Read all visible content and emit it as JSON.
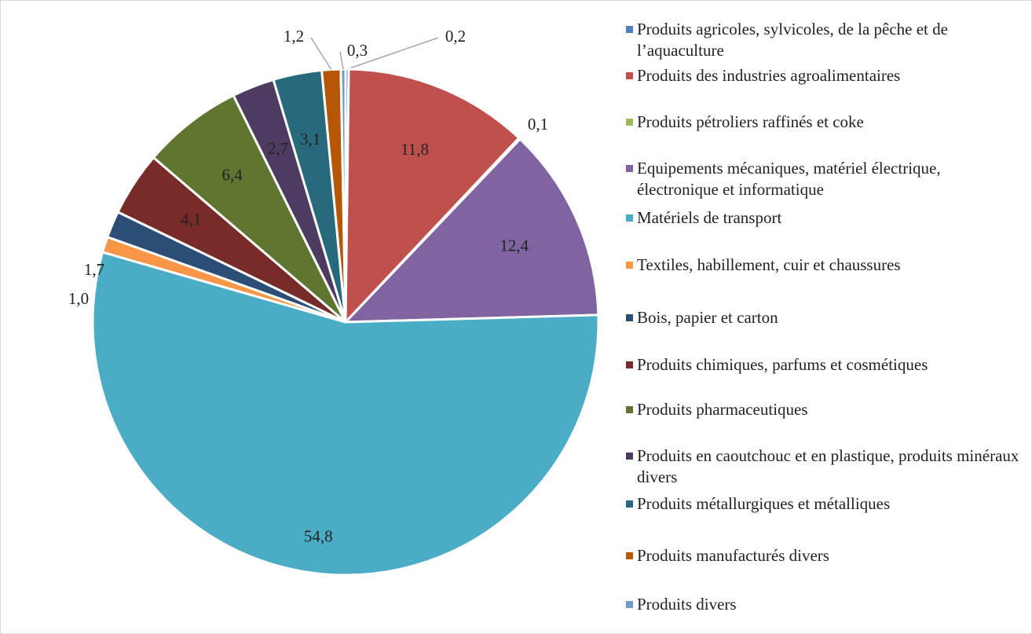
{
  "chart_data": {
    "type": "pie",
    "categories": [
      "Produits agricoles, sylvicoles, de la pêche et de l’aquaculture",
      "Produits des industries agroalimentaires",
      "Produits pétroliers raffinés et coke",
      "Equipements mécaniques, matériel électrique, électronique et informatique",
      "Matériels de transport",
      "Textiles, habillement, cuir et chaussures",
      "Bois, papier et carton",
      "Produits chimiques, parfums et cosmétiques",
      "Produits pharmaceutiques",
      "Produits en caoutchouc et en plastique, produits minéraux divers",
      "Produits métallurgiques et métalliques",
      "Produits manufacturés divers",
      "Produits divers"
    ],
    "values": [
      0.2,
      11.8,
      0.1,
      12.4,
      54.8,
      1.0,
      1.7,
      4.1,
      6.4,
      2.7,
      3.1,
      1.2,
      0.3
    ],
    "value_labels": [
      "0,2",
      "11,8",
      "0,1",
      "12,4",
      "54,8",
      "1,0",
      "1,7",
      "4,1",
      "6,4",
      "2,7",
      "3,1",
      "1,2",
      "0,3"
    ],
    "colors": [
      "#4f81bd",
      "#c0504d",
      "#9bbb59",
      "#8064a2",
      "#4bacc6",
      "#f79646",
      "#2c4d75",
      "#772c2a",
      "#5f7530",
      "#4d3b62",
      "#276a7c",
      "#b65708",
      "#729aca"
    ],
    "legend": "right"
  }
}
